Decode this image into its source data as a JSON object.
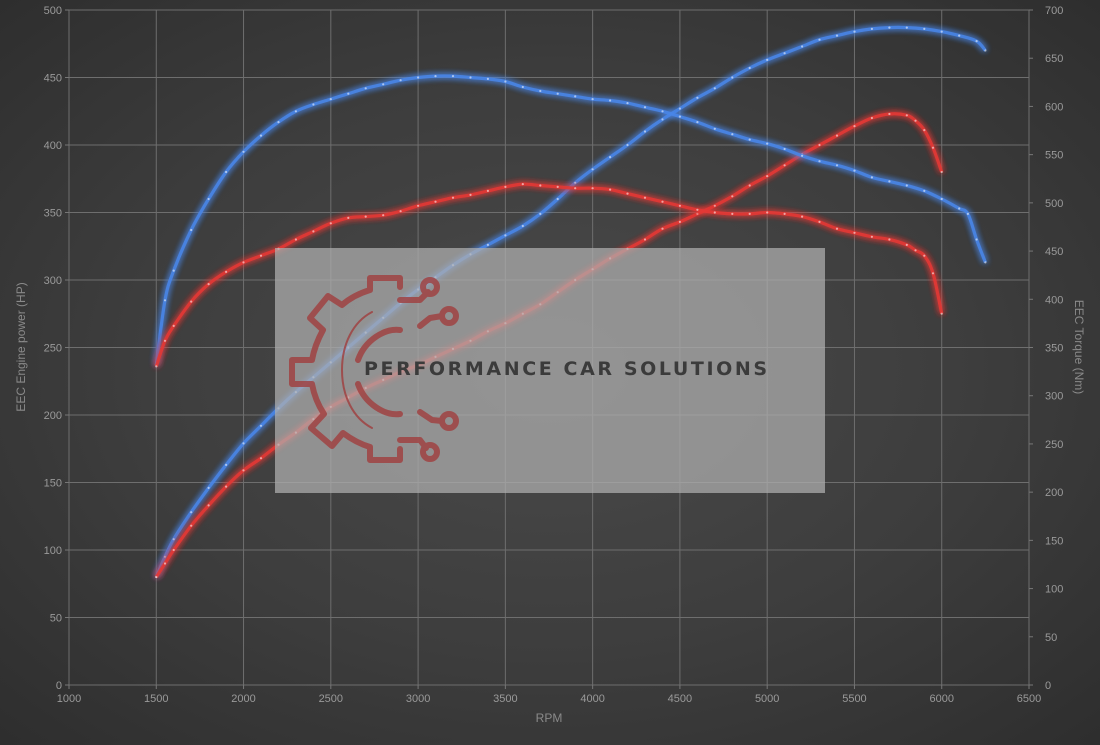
{
  "chart_data": {
    "type": "line",
    "title": "",
    "xlabel": "RPM",
    "ylabel_left": "EEC Engine power (HP)",
    "ylabel_right": "EEC Torque (Nm)",
    "xlim": [
      1000,
      6500
    ],
    "ylim_left": [
      0,
      500
    ],
    "ylim_right": [
      0,
      700
    ],
    "x_ticks": [
      "1000",
      "1500",
      "2000",
      "2500",
      "3000",
      "3500",
      "4000",
      "4500",
      "5000",
      "5500",
      "6000",
      "6500"
    ],
    "y_ticks_left": [
      "0",
      "50",
      "100",
      "150",
      "200",
      "250",
      "300",
      "350",
      "400",
      "450",
      "500"
    ],
    "y_ticks_right": [
      "0",
      "50",
      "100",
      "150",
      "200",
      "250",
      "300",
      "350",
      "400",
      "450",
      "500",
      "550",
      "600",
      "650",
      "700"
    ],
    "grid": true,
    "legend": "none",
    "series": [
      {
        "axis": "left",
        "color": "#4a86e8",
        "x": [
          1500,
          1550,
          1600,
          1700,
          1800,
          1900,
          2000,
          2100,
          2200,
          2300,
          2400,
          2500,
          2600,
          2700,
          2800,
          2900,
          3000,
          3100,
          3200,
          3300,
          3400,
          3500,
          3600,
          3700,
          3800,
          3900,
          4000,
          4100,
          4200,
          4300,
          4400,
          4500,
          4600,
          4700,
          4800,
          4900,
          5000,
          5100,
          5200,
          5300,
          5400,
          5500,
          5600,
          5700,
          5800,
          5900,
          6000,
          6100,
          6200,
          6250
        ],
        "values": [
          80,
          95,
          108,
          128,
          146,
          163,
          179,
          192,
          205,
          217,
          228,
          239,
          250,
          261,
          272,
          283,
          293,
          302,
          311,
          319,
          326,
          333,
          340,
          349,
          360,
          372,
          382,
          391,
          400,
          410,
          419,
          427,
          435,
          442,
          450,
          457,
          463,
          468,
          473,
          478,
          481,
          484,
          486,
          487,
          487,
          486,
          484,
          481,
          477,
          470
        ]
      },
      {
        "axis": "left",
        "color": "#e53935",
        "x": [
          1500,
          1550,
          1600,
          1700,
          1800,
          1900,
          2000,
          2100,
          2200,
          2300,
          2400,
          2500,
          2600,
          2700,
          2800,
          2900,
          3000,
          3100,
          3200,
          3300,
          3400,
          3500,
          3600,
          3700,
          3800,
          3900,
          4000,
          4100,
          4200,
          4300,
          4400,
          4500,
          4600,
          4700,
          4800,
          4900,
          5000,
          5100,
          5200,
          5300,
          5400,
          5500,
          5600,
          5700,
          5800,
          5850,
          5900,
          5950,
          6000
        ],
        "values": [
          80,
          90,
          100,
          118,
          133,
          147,
          159,
          168,
          178,
          187,
          197,
          206,
          213,
          220,
          226,
          232,
          237,
          243,
          249,
          255,
          262,
          268,
          275,
          282,
          291,
          300,
          308,
          316,
          323,
          330,
          338,
          343,
          349,
          355,
          362,
          370,
          377,
          385,
          393,
          400,
          407,
          414,
          420,
          423,
          422,
          418,
          411,
          398,
          380
        ]
      },
      {
        "axis": "left",
        "color": "#4a86e8",
        "x": [
          1500,
          1550,
          1600,
          1700,
          1800,
          1900,
          2000,
          2100,
          2200,
          2300,
          2400,
          2500,
          2600,
          2700,
          2800,
          2900,
          3000,
          3100,
          3200,
          3300,
          3400,
          3500,
          3600,
          3700,
          3800,
          3900,
          4000,
          4100,
          4200,
          4300,
          4400,
          4500,
          4600,
          4700,
          4800,
          4900,
          5000,
          5100,
          5200,
          5300,
          5400,
          5500,
          5600,
          5700,
          5800,
          5900,
          6000,
          6100,
          6150,
          6200,
          6250
        ],
        "values": [
          237,
          285,
          307,
          337,
          360,
          380,
          395,
          407,
          417,
          425,
          430,
          434,
          438,
          442,
          445,
          448,
          450,
          451,
          451,
          450,
          449,
          447,
          443,
          440,
          438,
          436,
          434,
          433,
          431,
          428,
          425,
          421,
          417,
          412,
          408,
          404,
          401,
          397,
          392,
          388,
          385,
          381,
          376,
          373,
          370,
          366,
          360,
          353,
          349,
          330,
          313
        ]
      },
      {
        "axis": "left",
        "color": "#e53935",
        "x": [
          1500,
          1550,
          1600,
          1700,
          1800,
          1900,
          2000,
          2100,
          2200,
          2300,
          2400,
          2500,
          2600,
          2700,
          2800,
          2900,
          3000,
          3100,
          3200,
          3300,
          3400,
          3500,
          3600,
          3700,
          3800,
          3900,
          4000,
          4100,
          4200,
          4300,
          4400,
          4500,
          4600,
          4700,
          4800,
          4900,
          5000,
          5100,
          5200,
          5300,
          5400,
          5500,
          5600,
          5700,
          5800,
          5850,
          5900,
          5950,
          6000
        ],
        "values": [
          236,
          255,
          266,
          284,
          297,
          306,
          313,
          318,
          323,
          330,
          336,
          342,
          346,
          347,
          348,
          351,
          355,
          358,
          361,
          363,
          366,
          369,
          371,
          370,
          369,
          368,
          368,
          367,
          364,
          361,
          358,
          355,
          352,
          350,
          349,
          349,
          350,
          349,
          347,
          343,
          338,
          335,
          332,
          330,
          326,
          322,
          318,
          305,
          275
        ]
      }
    ]
  },
  "watermark": {
    "text": "PERFORMANCE CAR SOLUTIONS"
  }
}
